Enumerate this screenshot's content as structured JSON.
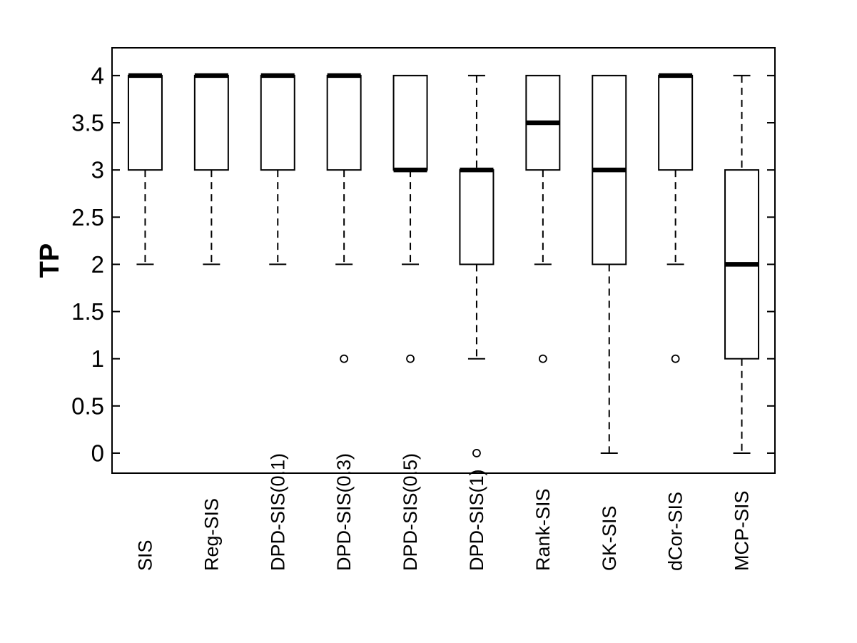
{
  "figure": {
    "background": "#ffffff",
    "line_color": "#000000"
  },
  "chart_data": {
    "type": "boxplot",
    "title": "",
    "xlabel": "",
    "ylabel": "TP",
    "grid": false,
    "orientation": "vertical",
    "ylim": [
      -0.212,
      4.294
    ],
    "yticks": [
      0,
      0.5,
      1,
      1.5,
      2,
      2.5,
      3,
      3.5,
      4
    ],
    "ytick_labels": [
      "0",
      "0.5",
      "1",
      "1.5",
      "2",
      "2.5",
      "3",
      "3.5",
      "4"
    ],
    "categories": [
      "SIS",
      "Reg-SIS",
      "DPD-SIS(0.1)",
      "DPD-SIS(0.3)",
      "DPD-SIS(0.5)",
      "DPD-SIS(1)",
      "Rank-SIS",
      "GK-SIS",
      "dCor-SIS",
      "MCP-SIS"
    ],
    "boxes": [
      {
        "label": "SIS",
        "q1": 3,
        "median": 4,
        "q3": 4,
        "whisker_low": 2,
        "whisker_high": 4,
        "outliers": []
      },
      {
        "label": "Reg-SIS",
        "q1": 3,
        "median": 4,
        "q3": 4,
        "whisker_low": 2,
        "whisker_high": 4,
        "outliers": []
      },
      {
        "label": "DPD-SIS(0.1)",
        "q1": 3,
        "median": 4,
        "q3": 4,
        "whisker_low": 2,
        "whisker_high": 4,
        "outliers": []
      },
      {
        "label": "DPD-SIS(0.3)",
        "q1": 3,
        "median": 4,
        "q3": 4,
        "whisker_low": 2,
        "whisker_high": 4,
        "outliers": [
          1
        ]
      },
      {
        "label": "DPD-SIS(0.5)",
        "q1": 3,
        "median": 3,
        "q3": 4,
        "whisker_low": 2,
        "whisker_high": 4,
        "outliers": [
          1
        ]
      },
      {
        "label": "DPD-SIS(1)",
        "q1": 2,
        "median": 3,
        "q3": 3,
        "whisker_low": 1,
        "whisker_high": 4,
        "outliers": [
          0
        ]
      },
      {
        "label": "Rank-SIS",
        "q1": 3,
        "median": 3.5,
        "q3": 4,
        "whisker_low": 2,
        "whisker_high": 4,
        "outliers": [
          1
        ]
      },
      {
        "label": "GK-SIS",
        "q1": 2,
        "median": 3,
        "q3": 4,
        "whisker_low": 0,
        "whisker_high": 4,
        "outliers": []
      },
      {
        "label": "dCor-SIS",
        "q1": 3,
        "median": 4,
        "q3": 4,
        "whisker_low": 2,
        "whisker_high": 4,
        "outliers": [
          1
        ]
      },
      {
        "label": "MCP-SIS",
        "q1": 1,
        "median": 2,
        "q3": 3,
        "whisker_low": 0,
        "whisker_high": 4,
        "outliers": []
      }
    ],
    "style": {
      "box_fill": "#ffffff",
      "stroke": "#000000",
      "whisker_dashed": true
    }
  }
}
